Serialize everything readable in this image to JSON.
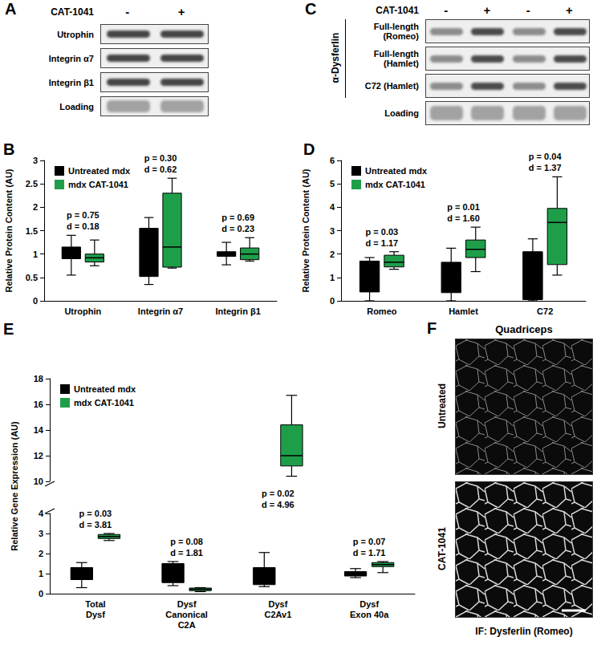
{
  "chart_data": [
    {
      "panel": "B",
      "type": "boxplot",
      "ylabel": "Relative Protein Content (AU)",
      "categories": [
        "Utrophin",
        "Integrin α7",
        "Integrin β1"
      ],
      "ylim": [
        0,
        3
      ],
      "yticks": [
        0,
        0.5,
        1,
        1.5,
        2,
        2.5,
        3
      ],
      "grid": false,
      "legend": "upper left",
      "series": [
        {
          "name": "Untreated mdx",
          "color": "#000000",
          "values": [
            [
              0.55,
              0.9,
              1.05,
              1.15,
              1.4
            ],
            [
              0.35,
              0.52,
              1.0,
              1.55,
              1.78
            ],
            [
              0.77,
              0.95,
              1.0,
              1.05,
              1.25
            ]
          ]
        },
        {
          "name": "mdx CAT-1041",
          "color": "#1f9e4a",
          "values": [
            [
              0.75,
              0.83,
              0.92,
              1.0,
              1.3
            ],
            [
              0.7,
              0.72,
              1.15,
              2.3,
              2.62
            ],
            [
              0.85,
              0.88,
              1.0,
              1.13,
              1.35
            ]
          ]
        }
      ],
      "annotations": [
        "p = 0.75\nd = 0.18",
        "p = 0.30\nd = 0.62",
        "p = 0.69\nd = 0.23"
      ]
    },
    {
      "panel": "D",
      "type": "boxplot",
      "ylabel": "Relative Protein Content (AU)",
      "categories": [
        "Romeo",
        "Hamlet",
        "C72"
      ],
      "ylim": [
        0,
        6
      ],
      "yticks": [
        0,
        1,
        2,
        3,
        4,
        5,
        6
      ],
      "grid": false,
      "legend": "upper left",
      "series": [
        {
          "name": "Untreated mdx",
          "color": "#000000",
          "values": [
            [
              0,
              0.38,
              1.3,
              1.7,
              1.85
            ],
            [
              0,
              0.35,
              1.0,
              1.65,
              2.25
            ],
            [
              0,
              0.05,
              0.6,
              2.1,
              2.65
            ]
          ]
        },
        {
          "name": "mdx CAT-1041",
          "color": "#1f9e4a",
          "values": [
            [
              1.35,
              1.45,
              1.65,
              1.95,
              2.1
            ],
            [
              1.25,
              1.85,
              2.2,
              2.6,
              3.15
            ],
            [
              1.1,
              1.55,
              3.35,
              3.95,
              5.3
            ]
          ]
        }
      ],
      "annotations": [
        "p = 0.03\nd = 1.17",
        "p = 0.01\nd = 1.60",
        "p = 0.04\nd = 1.37"
      ]
    },
    {
      "panel": "E",
      "type": "boxplot",
      "ylabel": "Relative Gene Expression (AU)",
      "categories": [
        "Total\nDysf",
        "Dysf\nCanonical\nC2A",
        "Dysf\nC2Av1",
        "Dysf\nExon 40a"
      ],
      "ylim": [
        0,
        18
      ],
      "yticks": [
        0,
        1,
        2,
        3,
        4,
        10,
        12,
        14,
        16,
        18
      ],
      "ybreak": [
        4,
        10
      ],
      "grid": false,
      "legend": "upper left",
      "series": [
        {
          "name": "Untreated mdx",
          "color": "#000000",
          "values": [
            [
              0.3,
              0.7,
              1.0,
              1.3,
              1.55
            ],
            [
              0.4,
              0.55,
              1.3,
              1.5,
              1.6
            ],
            [
              0.35,
              0.45,
              0.9,
              1.3,
              2.05
            ],
            [
              0.8,
              0.88,
              1.0,
              1.1,
              1.25
            ]
          ]
        },
        {
          "name": "mdx CAT-1041",
          "color": "#1f9e4a",
          "values": [
            [
              2.65,
              2.75,
              2.85,
              2.95,
              3.0
            ],
            [
              0.1,
              0.15,
              0.22,
              0.28,
              0.3
            ],
            [
              10.4,
              11.2,
              12.0,
              14.4,
              16.7
            ],
            [
              1.05,
              1.35,
              1.45,
              1.55,
              1.6
            ]
          ]
        }
      ],
      "annotations": [
        "p = 0.03\nd = 3.81",
        "p = 0.08\nd = 1.81",
        "p = 0.02\nd = 4.96",
        "p = 0.07\nd = 1.71"
      ]
    }
  ],
  "blots": [
    {
      "panel": "A",
      "treatment": "CAT-1041",
      "lanes": [
        "-",
        "+"
      ],
      "rows": [
        "Utrophin",
        "Integrin α7",
        "Integrin β1",
        "Loading"
      ]
    },
    {
      "panel": "C",
      "treatment": "CAT-1041",
      "lanes": [
        "-",
        "+",
        "-",
        "+"
      ],
      "antibody": "α-Dysferlin",
      "rows": [
        "Full-length\n(Romeo)",
        "Full-length\n(Hamlet)",
        "C72 (Hamlet)",
        "Loading"
      ]
    }
  ],
  "images": {
    "panel": "F",
    "title": "Quadriceps",
    "rows": [
      "Untreated",
      "CAT-1041"
    ],
    "caption": "IF: Dysferlin (Romeo)"
  }
}
